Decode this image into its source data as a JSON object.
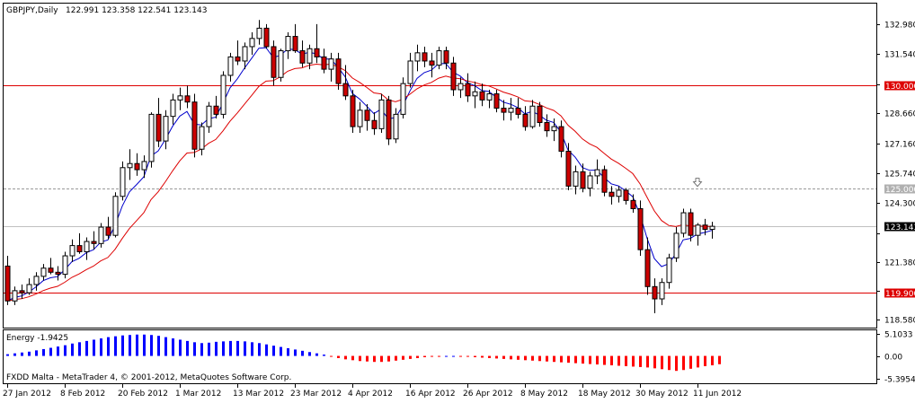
{
  "header": {
    "symbol_label": "GBPJPY,Daily",
    "ohlc_label": "122.991 123.358 122.541 123.143"
  },
  "footer": {
    "copyright": "FXDD Malta - MetaTrader 4, © 2001-2012, MetaQuotes Software Corp."
  },
  "colors": {
    "bull_candle": "#ffffff",
    "bear_candle": "#cc0000",
    "fast_ma": "#0000cc",
    "slow_ma": "#dd0000",
    "hline_red": "#dd0000",
    "hline_dotted": "#999999",
    "energy_pos": "#0000ff",
    "energy_neg": "#ff0000"
  },
  "chart_data": [
    {
      "type": "candlestick",
      "ylim": [
        118.2,
        134.0
      ],
      "y_ticks": [
        118.58,
        120.0,
        121.38,
        122.8,
        124.3,
        125.74,
        127.16,
        128.66,
        130.06,
        131.54,
        132.98
      ],
      "y_tick_labels": [
        "118.580",
        "",
        "121.380",
        "",
        "124.300",
        "125.740",
        "127.160",
        "128.660",
        "",
        "131.540",
        "132.980"
      ],
      "x_tick_labels": [
        "27 Jan 2012",
        "8 Feb 2012",
        "20 Feb 2012",
        "1 Mar 2012",
        "13 Mar 2012",
        "23 Mar 2012",
        "4 Apr 2012",
        "16 Apr 2012",
        "26 Apr 2012",
        "8 May 2012",
        "18 May 2012",
        "30 May 2012",
        "11 Jun 2012"
      ],
      "x_tick_index": [
        0,
        8,
        16,
        24,
        32,
        40,
        48,
        56,
        64,
        72,
        80,
        88,
        96
      ],
      "current_price": 123.143,
      "current_price_label": "123.143",
      "levels": [
        {
          "value": 130.0,
          "label": "130.000",
          "style": "solid"
        },
        {
          "value": 125.0,
          "label": "125.000",
          "style": "dotted"
        },
        {
          "value": 119.9,
          "label": "119.900",
          "style": "solid"
        }
      ],
      "arrow_marker": {
        "index": 96,
        "value": 125.0
      },
      "candles": [
        [
          121.2,
          121.7,
          119.3,
          119.5
        ],
        [
          119.5,
          120.2,
          119.3,
          120.0
        ],
        [
          120.0,
          120.3,
          119.6,
          119.9
        ],
        [
          119.9,
          120.6,
          119.8,
          120.3
        ],
        [
          120.3,
          120.9,
          120.0,
          120.7
        ],
        [
          120.7,
          121.3,
          120.5,
          121.1
        ],
        [
          121.1,
          121.6,
          120.8,
          120.9
        ],
        [
          120.9,
          121.2,
          120.5,
          120.8
        ],
        [
          120.8,
          121.9,
          120.6,
          121.7
        ],
        [
          121.7,
          122.5,
          121.4,
          122.2
        ],
        [
          122.2,
          122.8,
          121.8,
          121.9
        ],
        [
          121.9,
          122.6,
          121.5,
          122.4
        ],
        [
          122.4,
          122.9,
          122.0,
          122.3
        ],
        [
          122.3,
          123.3,
          122.1,
          123.1
        ],
        [
          123.1,
          123.6,
          122.5,
          122.7
        ],
        [
          122.7,
          124.8,
          122.6,
          124.6
        ],
        [
          124.6,
          126.3,
          124.4,
          126.0
        ],
        [
          126.0,
          126.9,
          125.4,
          126.2
        ],
        [
          126.2,
          126.7,
          125.6,
          125.9
        ],
        [
          125.9,
          126.6,
          125.5,
          126.3
        ],
        [
          126.3,
          128.7,
          126.0,
          128.6
        ],
        [
          128.6,
          129.4,
          127.0,
          127.3
        ],
        [
          127.3,
          128.8,
          126.9,
          128.5
        ],
        [
          128.5,
          129.6,
          128.1,
          129.3
        ],
        [
          129.3,
          129.9,
          128.8,
          129.5
        ],
        [
          129.5,
          130.0,
          128.9,
          129.2
        ],
        [
          129.2,
          129.6,
          126.5,
          126.9
        ],
        [
          126.9,
          128.2,
          126.6,
          128.0
        ],
        [
          128.0,
          129.2,
          127.7,
          129.0
        ],
        [
          129.0,
          129.5,
          128.4,
          128.6
        ],
        [
          128.6,
          130.7,
          128.4,
          130.5
        ],
        [
          130.5,
          131.6,
          130.2,
          131.4
        ],
        [
          131.4,
          132.2,
          131.0,
          131.2
        ],
        [
          131.2,
          132.1,
          130.8,
          131.9
        ],
        [
          131.9,
          132.6,
          131.5,
          132.3
        ],
        [
          132.3,
          133.2,
          132.0,
          132.8
        ],
        [
          132.8,
          133.0,
          131.8,
          131.9
        ],
        [
          131.9,
          132.2,
          130.0,
          130.4
        ],
        [
          130.4,
          131.8,
          130.2,
          131.7
        ],
        [
          131.7,
          132.6,
          131.3,
          132.4
        ],
        [
          132.4,
          133.0,
          131.6,
          131.7
        ],
        [
          131.7,
          132.2,
          130.9,
          131.1
        ],
        [
          131.1,
          132.0,
          130.8,
          131.8
        ],
        [
          131.8,
          133.0,
          131.1,
          131.4
        ],
        [
          131.4,
          131.8,
          130.6,
          130.8
        ],
        [
          130.8,
          131.6,
          130.2,
          131.3
        ],
        [
          131.3,
          131.6,
          129.8,
          130.1
        ],
        [
          130.1,
          131.0,
          129.3,
          129.5
        ],
        [
          129.5,
          129.8,
          127.7,
          128.0
        ],
        [
          128.0,
          129.2,
          127.7,
          128.8
        ],
        [
          128.8,
          129.1,
          127.8,
          128.3
        ],
        [
          128.3,
          128.7,
          127.6,
          127.9
        ],
        [
          127.9,
          129.6,
          127.7,
          129.3
        ],
        [
          129.3,
          129.5,
          127.1,
          127.4
        ],
        [
          127.4,
          128.9,
          127.2,
          128.6
        ],
        [
          128.6,
          130.4,
          128.4,
          130.1
        ],
        [
          130.1,
          131.6,
          129.9,
          131.2
        ],
        [
          131.2,
          132.0,
          130.7,
          131.6
        ],
        [
          131.6,
          131.9,
          130.9,
          131.2
        ],
        [
          131.2,
          131.6,
          130.4,
          131.0
        ],
        [
          131.0,
          131.9,
          130.8,
          131.7
        ],
        [
          131.7,
          131.9,
          130.8,
          131.1
        ],
        [
          131.1,
          131.4,
          129.5,
          129.8
        ],
        [
          129.8,
          130.4,
          129.4,
          130.1
        ],
        [
          130.1,
          130.6,
          129.2,
          129.5
        ],
        [
          129.5,
          130.2,
          128.9,
          129.7
        ],
        [
          129.7,
          130.1,
          129.0,
          129.3
        ],
        [
          129.3,
          129.8,
          128.9,
          129.6
        ],
        [
          129.6,
          129.8,
          128.7,
          128.9
        ],
        [
          128.9,
          129.3,
          128.3,
          128.7
        ],
        [
          128.7,
          129.4,
          128.3,
          128.9
        ],
        [
          128.9,
          129.4,
          128.4,
          128.6
        ],
        [
          128.6,
          129.0,
          127.8,
          128.0
        ],
        [
          128.0,
          129.3,
          127.9,
          129.0
        ],
        [
          129.0,
          129.2,
          128.0,
          128.2
        ],
        [
          128.2,
          128.6,
          127.5,
          127.8
        ],
        [
          127.8,
          128.4,
          127.3,
          128.0
        ],
        [
          128.0,
          128.3,
          126.5,
          126.8
        ],
        [
          126.8,
          127.2,
          124.9,
          125.1
        ],
        [
          125.1,
          126.1,
          124.7,
          125.8
        ],
        [
          125.8,
          126.2,
          124.8,
          125.0
        ],
        [
          125.0,
          125.8,
          124.6,
          125.6
        ],
        [
          125.6,
          126.4,
          125.2,
          125.9
        ],
        [
          125.9,
          126.1,
          124.6,
          124.8
        ],
        [
          124.8,
          125.1,
          124.2,
          124.6
        ],
        [
          124.6,
          125.1,
          124.3,
          124.9
        ],
        [
          124.9,
          125.0,
          124.2,
          124.4
        ],
        [
          124.4,
          124.7,
          123.8,
          124.0
        ],
        [
          124.0,
          124.4,
          121.7,
          122.0
        ],
        [
          122.0,
          122.6,
          119.8,
          120.2
        ],
        [
          120.2,
          120.6,
          118.9,
          119.6
        ],
        [
          119.6,
          120.6,
          119.3,
          120.4
        ],
        [
          120.4,
          121.8,
          120.1,
          121.6
        ],
        [
          121.6,
          123.1,
          121.4,
          122.8
        ],
        [
          122.8,
          124.0,
          122.6,
          123.8
        ],
        [
          123.8,
          124.0,
          122.4,
          122.7
        ],
        [
          122.7,
          123.3,
          122.2,
          123.2
        ],
        [
          123.2,
          123.5,
          122.7,
          122.99
        ],
        [
          122.99,
          123.36,
          122.54,
          123.14
        ]
      ]
    },
    {
      "type": "bar",
      "title": "Energy -1.9425",
      "ylim": [
        -6.4,
        6.0
      ],
      "y_ticks": [
        5.1033,
        0.0,
        -5.3954
      ],
      "y_tick_labels": [
        "5.1033",
        "0.00",
        "-5.3954"
      ],
      "values": [
        0.4,
        0.6,
        0.8,
        1.0,
        1.3,
        1.6,
        1.9,
        2.2,
        2.5,
        2.9,
        3.2,
        3.5,
        3.8,
        4.1,
        4.4,
        4.6,
        4.8,
        4.9,
        5.0,
        5.0,
        4.9,
        4.7,
        4.4,
        4.1,
        3.8,
        3.5,
        3.2,
        3.0,
        3.1,
        3.3,
        3.4,
        3.5,
        3.5,
        3.4,
        3.2,
        3.0,
        2.7,
        2.4,
        2.1,
        1.8,
        1.5,
        1.2,
        0.9,
        0.6,
        0.3,
        -0.2,
        -0.5,
        -0.8,
        -1.0,
        -1.2,
        -1.3,
        -1.4,
        -1.4,
        -1.3,
        -1.1,
        -0.9,
        -0.7,
        -0.5,
        -0.3,
        -0.2,
        -0.1,
        0.0,
        0.0,
        -0.1,
        -0.2,
        -0.3,
        -0.4,
        -0.5,
        -0.6,
        -0.7,
        -0.8,
        -0.9,
        -1.0,
        -1.1,
        -1.2,
        -1.3,
        -1.4,
        -1.5,
        -1.6,
        -1.7,
        -1.8,
        -1.9,
        -2.0,
        -2.1,
        -2.2,
        -2.3,
        -2.4,
        -2.5,
        -2.6,
        -2.7,
        -2.9,
        -3.1,
        -3.3,
        -3.5,
        -3.3,
        -3.0,
        -2.7,
        -2.4,
        -2.2,
        -1.94
      ]
    }
  ]
}
